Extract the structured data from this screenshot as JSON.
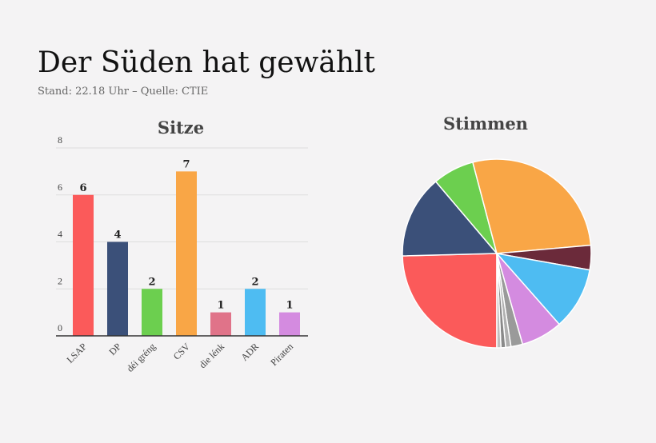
{
  "title": "Der Süden hat gewählt",
  "subtitle": "Stand: 22.18 Uhr – Quelle: CTIE",
  "chart_data": [
    {
      "type": "bar",
      "title": "Sitze",
      "categories": [
        "LSAP",
        "DP",
        "déi gréng",
        "CSV",
        "die lénk",
        "ADR",
        "Piraten"
      ],
      "values": [
        6,
        4,
        2,
        7,
        1,
        2,
        1
      ],
      "colors": [
        "#fb5a5a",
        "#3b5079",
        "#6ccf4f",
        "#f9a646",
        "#e07389",
        "#4ebcf2",
        "#d48be0"
      ],
      "ylim": [
        0,
        8
      ],
      "yticks": [
        0,
        2,
        4,
        6,
        8
      ],
      "grid": true
    },
    {
      "type": "pie",
      "title": "Stimmen",
      "values": [
        24.6,
        14.2,
        7.1,
        27.7,
        4.2,
        10.7,
        7.1,
        2.0,
        0.9,
        0.8,
        0.7
      ],
      "colors": [
        "#fb5a5a",
        "#3b5079",
        "#6ccf4f",
        "#f9a646",
        "#6b2a3a",
        "#4ebcf2",
        "#d48be0",
        "#9a9a9a",
        "#b0b0b0",
        "#8a8a8a",
        "#c0c0c0"
      ]
    }
  ]
}
